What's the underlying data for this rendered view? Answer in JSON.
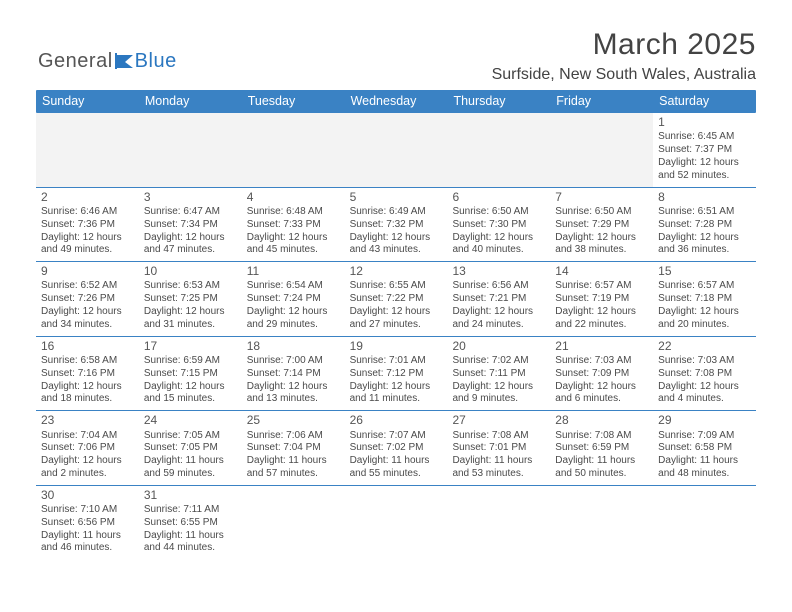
{
  "brand": {
    "part1": "General",
    "part2": "Blue"
  },
  "title": "March 2025",
  "location": "Surfside, New South Wales, Australia",
  "day_headers": [
    "Sunday",
    "Monday",
    "Tuesday",
    "Wednesday",
    "Thursday",
    "Friday",
    "Saturday"
  ],
  "colors": {
    "header_bg": "#3a82c4",
    "header_text": "#ffffff",
    "divider": "#3a82c4",
    "body_text": "#4a4a4a",
    "empty_bg": "#f3f3f3"
  },
  "weeks": [
    [
      null,
      null,
      null,
      null,
      null,
      null,
      {
        "day": "1",
        "sunrise": "Sunrise: 6:45 AM",
        "sunset": "Sunset: 7:37 PM",
        "daylight1": "Daylight: 12 hours",
        "daylight2": "and 52 minutes."
      }
    ],
    [
      {
        "day": "2",
        "sunrise": "Sunrise: 6:46 AM",
        "sunset": "Sunset: 7:36 PM",
        "daylight1": "Daylight: 12 hours",
        "daylight2": "and 49 minutes."
      },
      {
        "day": "3",
        "sunrise": "Sunrise: 6:47 AM",
        "sunset": "Sunset: 7:34 PM",
        "daylight1": "Daylight: 12 hours",
        "daylight2": "and 47 minutes."
      },
      {
        "day": "4",
        "sunrise": "Sunrise: 6:48 AM",
        "sunset": "Sunset: 7:33 PM",
        "daylight1": "Daylight: 12 hours",
        "daylight2": "and 45 minutes."
      },
      {
        "day": "5",
        "sunrise": "Sunrise: 6:49 AM",
        "sunset": "Sunset: 7:32 PM",
        "daylight1": "Daylight: 12 hours",
        "daylight2": "and 43 minutes."
      },
      {
        "day": "6",
        "sunrise": "Sunrise: 6:50 AM",
        "sunset": "Sunset: 7:30 PM",
        "daylight1": "Daylight: 12 hours",
        "daylight2": "and 40 minutes."
      },
      {
        "day": "7",
        "sunrise": "Sunrise: 6:50 AM",
        "sunset": "Sunset: 7:29 PM",
        "daylight1": "Daylight: 12 hours",
        "daylight2": "and 38 minutes."
      },
      {
        "day": "8",
        "sunrise": "Sunrise: 6:51 AM",
        "sunset": "Sunset: 7:28 PM",
        "daylight1": "Daylight: 12 hours",
        "daylight2": "and 36 minutes."
      }
    ],
    [
      {
        "day": "9",
        "sunrise": "Sunrise: 6:52 AM",
        "sunset": "Sunset: 7:26 PM",
        "daylight1": "Daylight: 12 hours",
        "daylight2": "and 34 minutes."
      },
      {
        "day": "10",
        "sunrise": "Sunrise: 6:53 AM",
        "sunset": "Sunset: 7:25 PM",
        "daylight1": "Daylight: 12 hours",
        "daylight2": "and 31 minutes."
      },
      {
        "day": "11",
        "sunrise": "Sunrise: 6:54 AM",
        "sunset": "Sunset: 7:24 PM",
        "daylight1": "Daylight: 12 hours",
        "daylight2": "and 29 minutes."
      },
      {
        "day": "12",
        "sunrise": "Sunrise: 6:55 AM",
        "sunset": "Sunset: 7:22 PM",
        "daylight1": "Daylight: 12 hours",
        "daylight2": "and 27 minutes."
      },
      {
        "day": "13",
        "sunrise": "Sunrise: 6:56 AM",
        "sunset": "Sunset: 7:21 PM",
        "daylight1": "Daylight: 12 hours",
        "daylight2": "and 24 minutes."
      },
      {
        "day": "14",
        "sunrise": "Sunrise: 6:57 AM",
        "sunset": "Sunset: 7:19 PM",
        "daylight1": "Daylight: 12 hours",
        "daylight2": "and 22 minutes."
      },
      {
        "day": "15",
        "sunrise": "Sunrise: 6:57 AM",
        "sunset": "Sunset: 7:18 PM",
        "daylight1": "Daylight: 12 hours",
        "daylight2": "and 20 minutes."
      }
    ],
    [
      {
        "day": "16",
        "sunrise": "Sunrise: 6:58 AM",
        "sunset": "Sunset: 7:16 PM",
        "daylight1": "Daylight: 12 hours",
        "daylight2": "and 18 minutes."
      },
      {
        "day": "17",
        "sunrise": "Sunrise: 6:59 AM",
        "sunset": "Sunset: 7:15 PM",
        "daylight1": "Daylight: 12 hours",
        "daylight2": "and 15 minutes."
      },
      {
        "day": "18",
        "sunrise": "Sunrise: 7:00 AM",
        "sunset": "Sunset: 7:14 PM",
        "daylight1": "Daylight: 12 hours",
        "daylight2": "and 13 minutes."
      },
      {
        "day": "19",
        "sunrise": "Sunrise: 7:01 AM",
        "sunset": "Sunset: 7:12 PM",
        "daylight1": "Daylight: 12 hours",
        "daylight2": "and 11 minutes."
      },
      {
        "day": "20",
        "sunrise": "Sunrise: 7:02 AM",
        "sunset": "Sunset: 7:11 PM",
        "daylight1": "Daylight: 12 hours",
        "daylight2": "and 9 minutes."
      },
      {
        "day": "21",
        "sunrise": "Sunrise: 7:03 AM",
        "sunset": "Sunset: 7:09 PM",
        "daylight1": "Daylight: 12 hours",
        "daylight2": "and 6 minutes."
      },
      {
        "day": "22",
        "sunrise": "Sunrise: 7:03 AM",
        "sunset": "Sunset: 7:08 PM",
        "daylight1": "Daylight: 12 hours",
        "daylight2": "and 4 minutes."
      }
    ],
    [
      {
        "day": "23",
        "sunrise": "Sunrise: 7:04 AM",
        "sunset": "Sunset: 7:06 PM",
        "daylight1": "Daylight: 12 hours",
        "daylight2": "and 2 minutes."
      },
      {
        "day": "24",
        "sunrise": "Sunrise: 7:05 AM",
        "sunset": "Sunset: 7:05 PM",
        "daylight1": "Daylight: 11 hours",
        "daylight2": "and 59 minutes."
      },
      {
        "day": "25",
        "sunrise": "Sunrise: 7:06 AM",
        "sunset": "Sunset: 7:04 PM",
        "daylight1": "Daylight: 11 hours",
        "daylight2": "and 57 minutes."
      },
      {
        "day": "26",
        "sunrise": "Sunrise: 7:07 AM",
        "sunset": "Sunset: 7:02 PM",
        "daylight1": "Daylight: 11 hours",
        "daylight2": "and 55 minutes."
      },
      {
        "day": "27",
        "sunrise": "Sunrise: 7:08 AM",
        "sunset": "Sunset: 7:01 PM",
        "daylight1": "Daylight: 11 hours",
        "daylight2": "and 53 minutes."
      },
      {
        "day": "28",
        "sunrise": "Sunrise: 7:08 AM",
        "sunset": "Sunset: 6:59 PM",
        "daylight1": "Daylight: 11 hours",
        "daylight2": "and 50 minutes."
      },
      {
        "day": "29",
        "sunrise": "Sunrise: 7:09 AM",
        "sunset": "Sunset: 6:58 PM",
        "daylight1": "Daylight: 11 hours",
        "daylight2": "and 48 minutes."
      }
    ],
    [
      {
        "day": "30",
        "sunrise": "Sunrise: 7:10 AM",
        "sunset": "Sunset: 6:56 PM",
        "daylight1": "Daylight: 11 hours",
        "daylight2": "and 46 minutes."
      },
      {
        "day": "31",
        "sunrise": "Sunrise: 7:11 AM",
        "sunset": "Sunset: 6:55 PM",
        "daylight1": "Daylight: 11 hours",
        "daylight2": "and 44 minutes."
      },
      null,
      null,
      null,
      null,
      null
    ]
  ]
}
